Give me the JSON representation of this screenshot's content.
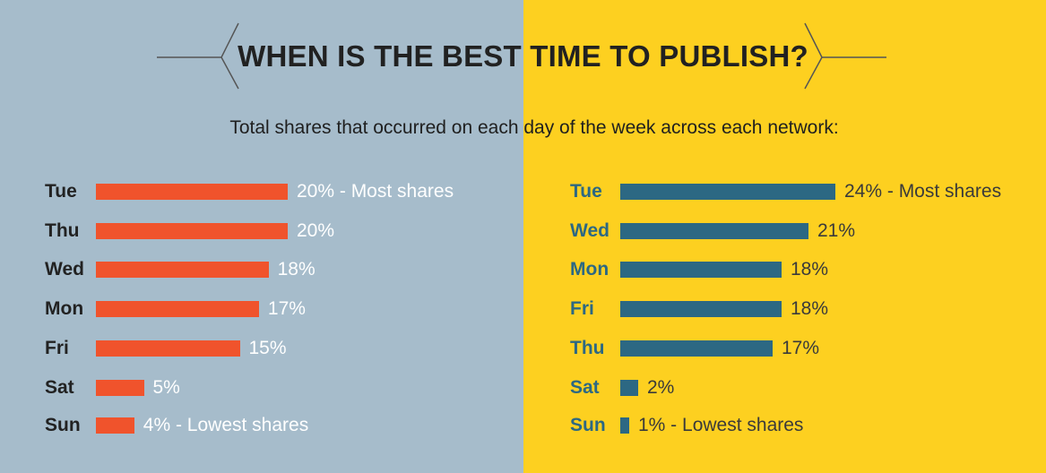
{
  "header": {
    "title": "WHEN IS THE BEST TIME TO PUBLISH?",
    "subtitle": "Total shares that occurred on each day of the week across each network:"
  },
  "colors": {
    "left_bg": "#a6bccb",
    "right_bg": "#fdd020",
    "left_bar": "#f0532c",
    "right_bar": "#2c6883",
    "left_label": "#222222",
    "right_label": "#2c6883",
    "left_value": "#ffffff",
    "right_value": "#3a3a3a",
    "decor_line": "#555555"
  },
  "chart_data": [
    {
      "type": "bar",
      "orientation": "horizontal",
      "categories": [
        "Tue",
        "Thu",
        "Wed",
        "Mon",
        "Fri",
        "Sat",
        "Sun"
      ],
      "values": [
        20,
        20,
        18,
        17,
        15,
        5,
        4
      ],
      "value_labels": [
        "20% - Most shares",
        "20%",
        "18%",
        "17%",
        "15%",
        "5%",
        "4% - Lowest shares"
      ],
      "unit": "%",
      "xlim": [
        0,
        100
      ]
    },
    {
      "type": "bar",
      "orientation": "horizontal",
      "categories": [
        "Tue",
        "Wed",
        "Mon",
        "Fri",
        "Thu",
        "Sat",
        "Sun"
      ],
      "values": [
        24,
        21,
        18,
        18,
        17,
        2,
        1
      ],
      "value_labels": [
        "24% - Most shares",
        "21%",
        "18%",
        "18%",
        "17%",
        "2%",
        "1% - Lowest shares"
      ],
      "unit": "%",
      "xlim": [
        0,
        100
      ]
    }
  ]
}
